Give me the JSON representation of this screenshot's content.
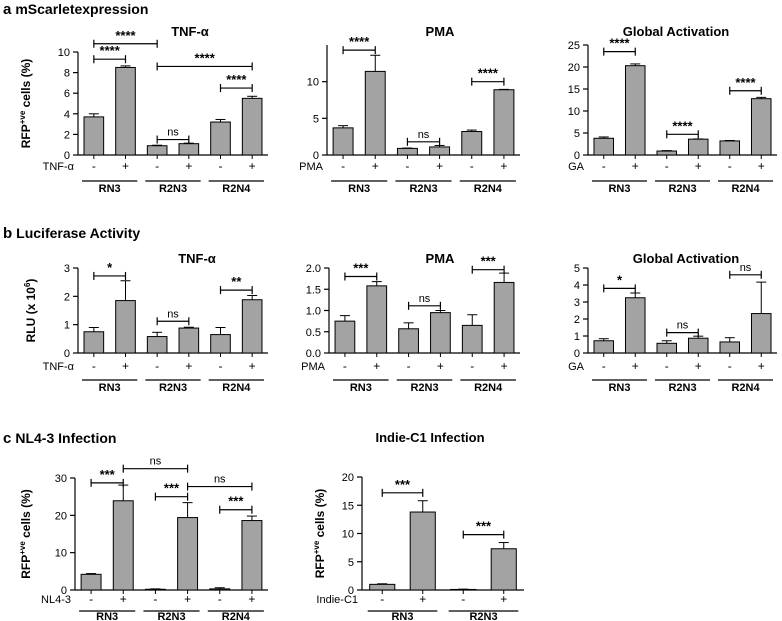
{
  "sections": {
    "a": {
      "letter": "a",
      "title": "mScarletexpression"
    },
    "b": {
      "letter": "b",
      "title": "Luciferase Activity"
    },
    "c": {
      "letter": "c",
      "title": "NL4-3 Infection"
    }
  },
  "chart_data": [
    {
      "type": "bar",
      "id": "a1",
      "title": "TNF-α",
      "ylabel": "RFP⁺ᵛᵉ cells (%)",
      "ylabel_main": "RFP",
      "ylabel_sup": "+ve",
      "ylabel_rest": " cells (%)",
      "treatment": "TNF-α",
      "ylim": [
        0,
        10
      ],
      "yticks": [
        0,
        2,
        4,
        6,
        8,
        10
      ],
      "groups": [
        "RN3",
        "R2N3",
        "R2N4"
      ],
      "categories": [
        "-",
        "+",
        "-",
        "+",
        "-",
        "+"
      ],
      "values": [
        3.7,
        8.5,
        0.9,
        1.1,
        3.2,
        5.5
      ],
      "errors": [
        0.3,
        0.15,
        0.05,
        0.05,
        0.25,
        0.2
      ],
      "annotations": [
        {
          "a": 0,
          "b": 1,
          "y": 9.3,
          "label": "****"
        },
        {
          "a": 0,
          "b": 2,
          "y": 10.8,
          "label": "****"
        },
        {
          "a": 2,
          "b": 3,
          "y": 1.5,
          "label": "ns"
        },
        {
          "a": 2,
          "b": 5,
          "y": 8.6,
          "label": "****"
        },
        {
          "a": 4,
          "b": 5,
          "y": 6.5,
          "label": "****"
        }
      ]
    },
    {
      "type": "bar",
      "id": "a2",
      "title": "PMA",
      "ylabel": "",
      "treatment": "PMA",
      "ylim": [
        0,
        15
      ],
      "yticks": [
        0,
        5,
        10
      ],
      "groups": [
        "RN3",
        "R2N3",
        "R2N4"
      ],
      "categories": [
        "-",
        "+",
        "-",
        "+",
        "-",
        "+"
      ],
      "values": [
        3.7,
        11.4,
        0.9,
        1.1,
        3.2,
        8.9
      ],
      "errors": [
        0.3,
        2.2,
        0.05,
        0.2,
        0.2,
        0.05
      ],
      "annotations": [
        {
          "a": 0,
          "b": 1,
          "y": 14.3,
          "label": "****"
        },
        {
          "a": 2,
          "b": 3,
          "y": 1.8,
          "label": "ns"
        },
        {
          "a": 4,
          "b": 5,
          "y": 10.0,
          "label": "****"
        }
      ]
    },
    {
      "type": "bar",
      "id": "a3",
      "title": "Global Activation",
      "ylabel": "",
      "treatment": "GA",
      "ylim": [
        0,
        25
      ],
      "yticks": [
        0,
        5,
        10,
        15,
        20,
        25
      ],
      "groups": [
        "RN3",
        "R2N3",
        "R2N4"
      ],
      "categories": [
        "-",
        "+",
        "-",
        "+",
        "-",
        "+"
      ],
      "values": [
        3.8,
        20.3,
        0.9,
        3.6,
        3.2,
        12.8
      ],
      "errors": [
        0.3,
        0.4,
        0.1,
        0.05,
        0.1,
        0.3
      ],
      "annotations": [
        {
          "a": 0,
          "b": 1,
          "y": 23.5,
          "label": "****"
        },
        {
          "a": 2,
          "b": 3,
          "y": 4.7,
          "label": "****"
        },
        {
          "a": 4,
          "b": 5,
          "y": 14.6,
          "label": "****"
        }
      ]
    },
    {
      "type": "bar",
      "id": "b1",
      "title": "TNF-α",
      "ylabel": "RLU (x 10⁶)",
      "ylabel_main": "RLU (x 10",
      "ylabel_sup": "6",
      "ylabel_rest": ")",
      "treatment": "TNF-α",
      "ylim": [
        0,
        3
      ],
      "yticks": [
        0,
        1,
        2,
        3
      ],
      "groups": [
        "RN3",
        "R2N3",
        "R2N4"
      ],
      "categories": [
        "-",
        "+",
        "-",
        "+",
        "-",
        "+"
      ],
      "values": [
        0.75,
        1.85,
        0.58,
        0.88,
        0.65,
        1.88
      ],
      "errors": [
        0.15,
        0.7,
        0.15,
        0.03,
        0.25,
        0.15
      ],
      "annotations": [
        {
          "a": 0,
          "b": 1,
          "y": 2.72,
          "label": "*"
        },
        {
          "a": 2,
          "b": 3,
          "y": 1.12,
          "label": "ns"
        },
        {
          "a": 4,
          "b": 5,
          "y": 2.22,
          "label": "**"
        }
      ]
    },
    {
      "type": "bar",
      "id": "b2",
      "title": "PMA",
      "ylabel": "",
      "treatment": "PMA",
      "ylim": [
        0,
        2.0
      ],
      "yticks": [
        0,
        0.5,
        1.0,
        1.5,
        2.0
      ],
      "groups": [
        "RN3",
        "R2N3",
        "R2N4"
      ],
      "categories": [
        "-",
        "+",
        "-",
        "+",
        "-",
        "+"
      ],
      "values": [
        0.75,
        1.58,
        0.57,
        0.95,
        0.65,
        1.66
      ],
      "errors": [
        0.13,
        0.1,
        0.14,
        0.05,
        0.25,
        0.22
      ],
      "annotations": [
        {
          "a": 0,
          "b": 1,
          "y": 1.8,
          "label": "***"
        },
        {
          "a": 2,
          "b": 3,
          "y": 1.11,
          "label": "ns"
        },
        {
          "a": 4,
          "b": 5,
          "y": 1.96,
          "label": "***"
        }
      ]
    },
    {
      "type": "bar",
      "id": "b3",
      "title": "Global Activation",
      "ylabel": "",
      "treatment": "GA",
      "ylim": [
        0,
        5
      ],
      "yticks": [
        0,
        1,
        2,
        3,
        4,
        5
      ],
      "groups": [
        "RN3",
        "R2N3",
        "R2N4"
      ],
      "categories": [
        "-",
        "+",
        "-",
        "+",
        "-",
        "+"
      ],
      "values": [
        0.72,
        3.25,
        0.57,
        0.87,
        0.65,
        2.32
      ],
      "errors": [
        0.12,
        0.28,
        0.15,
        0.12,
        0.25,
        1.85
      ],
      "annotations": [
        {
          "a": 0,
          "b": 1,
          "y": 3.8,
          "label": "*"
        },
        {
          "a": 2,
          "b": 3,
          "y": 1.2,
          "label": "ns"
        },
        {
          "a": 4,
          "b": 5,
          "y": 4.6,
          "label": "ns"
        }
      ]
    },
    {
      "type": "bar",
      "id": "c1",
      "title": "",
      "ylabel": "RFP⁺ᵛᵉ cells (%)",
      "ylabel_main": "RFP",
      "ylabel_sup": "+ve",
      "ylabel_rest": " cells (%)",
      "treatment": "NL4-3",
      "ylim": [
        0,
        30
      ],
      "yticks": [
        0,
        10,
        20,
        30
      ],
      "groups": [
        "RN3",
        "R2N3",
        "R2N4"
      ],
      "categories": [
        "-",
        "+",
        "-",
        "+",
        "-",
        "+"
      ],
      "values": [
        4.2,
        23.9,
        0.2,
        19.4,
        0.3,
        18.6
      ],
      "errors": [
        0.2,
        4.2,
        0.1,
        4.0,
        0.3,
        1.2
      ],
      "annotations": [
        {
          "a": 0,
          "b": 1,
          "y": 28.7,
          "label": "***"
        },
        {
          "a": 1,
          "b": 3,
          "y": 32.5,
          "label": "ns"
        },
        {
          "a": 2,
          "b": 3,
          "y": 25.0,
          "label": "***"
        },
        {
          "a": 3,
          "b": 5,
          "y": 27.7,
          "label": "ns"
        },
        {
          "a": 4,
          "b": 5,
          "y": 21.5,
          "label": "***"
        }
      ]
    },
    {
      "type": "bar",
      "id": "c2",
      "title": "Indie-C1 Infection",
      "ylabel": "RFP⁺ᵛᵉ cells (%)",
      "ylabel_main": "RFP",
      "ylabel_sup": "+ve",
      "ylabel_rest": " cells (%)",
      "treatment": "Indie-C1",
      "ylim": [
        0,
        20
      ],
      "yticks": [
        0,
        5,
        10,
        15,
        20
      ],
      "groups": [
        "RN3",
        "R2N3"
      ],
      "categories": [
        "-",
        "+",
        "-",
        "+"
      ],
      "values": [
        1.0,
        13.8,
        0.1,
        7.3
      ],
      "errors": [
        0.1,
        2.0,
        0.05,
        1.1
      ],
      "annotations": [
        {
          "a": 0,
          "b": 1,
          "y": 17.2,
          "label": "***"
        },
        {
          "a": 2,
          "b": 3,
          "y": 9.8,
          "label": "***"
        }
      ]
    }
  ]
}
